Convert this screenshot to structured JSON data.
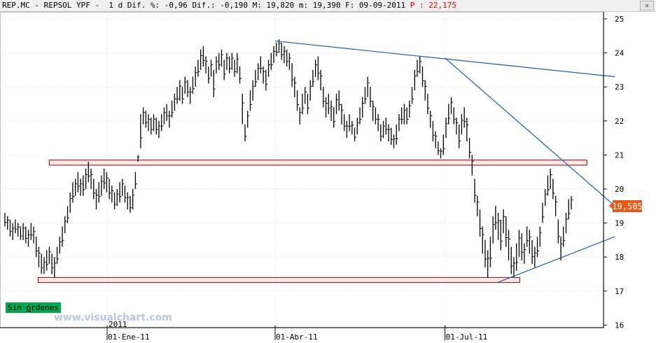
{
  "header": {
    "quote_text": "REP.MC - REPSOL YPF -  1 d Dif. %: -0,96 Dif.: -0,190 M: 19,820 m: 19,390 F: 09-09-2011 ",
    "p_text": "P : 22,175",
    "close_icon": "close-icon"
  },
  "status": {
    "label_prefix": "Sin ",
    "label_underlined": "ó",
    "label_suffix": "rdenes",
    "color": "#00a651"
  },
  "watermark": "www.visualchart.com",
  "last_price": "19,505",
  "colors": {
    "bar": "#000000",
    "trendline": "#1f5faa",
    "zone_border": "#8b0000",
    "zone_fill": "#ffe8e8",
    "price_flag": "#e85a1a",
    "grid": "#d9d9d9"
  },
  "chart_data": {
    "type": "ohlc",
    "title": "REP.MC - REPSOL YPF - 1 d",
    "y_ticks": [
      "25",
      "24",
      "23",
      "22",
      "21",
      "20",
      "19",
      "18",
      "17",
      "16"
    ],
    "ylim": [
      16,
      25.2
    ],
    "x_labels": [
      "01-Ene-11",
      "01-Abr-11",
      "01-Jul-11"
    ],
    "year_label": "2011",
    "grid": "horizontal-dotted",
    "last_price": 19.505,
    "series": [
      {
        "values": [
          [
            19.3,
            18.9
          ],
          [
            19.2,
            18.8
          ],
          [
            19.1,
            18.6
          ],
          [
            19.0,
            18.5
          ],
          [
            19.1,
            18.7
          ],
          [
            19.0,
            18.6
          ],
          [
            18.9,
            18.5
          ],
          [
            19.0,
            18.5
          ],
          [
            18.9,
            18.4
          ],
          [
            18.8,
            18.3
          ],
          [
            19.0,
            18.5
          ],
          [
            18.9,
            18.4
          ],
          [
            18.6,
            18.0
          ],
          [
            18.3,
            17.7
          ],
          [
            18.1,
            17.5
          ],
          [
            18.0,
            17.5
          ],
          [
            18.2,
            17.6
          ],
          [
            18.3,
            17.8
          ],
          [
            18.1,
            17.5
          ],
          [
            18.0,
            17.4
          ],
          [
            18.3,
            17.8
          ],
          [
            18.6,
            18.1
          ],
          [
            18.9,
            18.3
          ],
          [
            19.2,
            18.7
          ],
          [
            19.5,
            19.0
          ],
          [
            19.9,
            19.3
          ],
          [
            20.2,
            19.6
          ],
          [
            20.3,
            19.8
          ],
          [
            20.5,
            19.9
          ],
          [
            20.3,
            19.8
          ],
          [
            20.4,
            19.8
          ],
          [
            20.6,
            20.0
          ],
          [
            20.8,
            20.2
          ],
          [
            20.6,
            20.0
          ],
          [
            20.3,
            19.7
          ],
          [
            20.0,
            19.4
          ],
          [
            20.2,
            19.6
          ],
          [
            20.4,
            19.8
          ],
          [
            20.6,
            20.0
          ],
          [
            20.5,
            19.9
          ],
          [
            20.3,
            19.7
          ],
          [
            20.1,
            19.6
          ],
          [
            19.9,
            19.4
          ],
          [
            20.0,
            19.5
          ],
          [
            20.2,
            19.6
          ],
          [
            20.3,
            19.8
          ],
          [
            20.1,
            19.6
          ],
          [
            19.9,
            19.4
          ],
          [
            19.8,
            19.3
          ],
          [
            20.0,
            19.4
          ],
          [
            20.5,
            20.0
          ],
          [
            21.0,
            20.8
          ],
          [
            22.2,
            21.2
          ],
          [
            22.4,
            21.9
          ],
          [
            22.3,
            21.8
          ],
          [
            22.2,
            21.7
          ],
          [
            22.1,
            21.6
          ],
          [
            22.2,
            21.7
          ],
          [
            22.1,
            21.6
          ],
          [
            22.0,
            21.5
          ],
          [
            22.2,
            21.7
          ],
          [
            22.4,
            21.9
          ],
          [
            22.5,
            22.0
          ],
          [
            22.3,
            21.8
          ],
          [
            22.6,
            22.1
          ],
          [
            22.8,
            22.3
          ],
          [
            23.0,
            22.5
          ],
          [
            23.2,
            22.6
          ],
          [
            23.0,
            22.5
          ],
          [
            23.3,
            22.8
          ],
          [
            23.2,
            22.7
          ],
          [
            23.0,
            22.5
          ],
          [
            23.3,
            22.8
          ],
          [
            23.6,
            23.0
          ],
          [
            23.8,
            23.3
          ],
          [
            24.1,
            23.5
          ],
          [
            24.2,
            23.6
          ],
          [
            23.9,
            23.4
          ],
          [
            23.6,
            23.1
          ],
          [
            23.8,
            23.3
          ],
          [
            23.5,
            22.7
          ],
          [
            23.9,
            23.4
          ],
          [
            24.0,
            23.5
          ],
          [
            24.1,
            23.6
          ],
          [
            23.8,
            23.2
          ],
          [
            24.0,
            23.5
          ],
          [
            23.9,
            23.4
          ],
          [
            24.0,
            23.5
          ],
          [
            23.8,
            23.3
          ],
          [
            24.0,
            23.4
          ],
          [
            23.6,
            23.1
          ],
          [
            22.8,
            21.9
          ],
          [
            21.9,
            21.4
          ],
          [
            22.3,
            21.8
          ],
          [
            22.9,
            22.3
          ],
          [
            23.2,
            22.6
          ],
          [
            23.5,
            23.0
          ],
          [
            23.7,
            23.2
          ],
          [
            23.9,
            23.4
          ],
          [
            23.6,
            23.1
          ],
          [
            23.5,
            22.9
          ],
          [
            23.8,
            23.3
          ],
          [
            24.0,
            23.5
          ],
          [
            24.2,
            23.7
          ],
          [
            24.3,
            23.9
          ],
          [
            24.4,
            24.0
          ],
          [
            24.3,
            23.8
          ],
          [
            24.2,
            23.7
          ],
          [
            24.1,
            23.6
          ],
          [
            24.0,
            23.5
          ],
          [
            23.7,
            23.0
          ],
          [
            23.3,
            22.7
          ],
          [
            22.9,
            22.3
          ],
          [
            22.4,
            21.9
          ],
          [
            22.8,
            22.2
          ],
          [
            23.0,
            22.5
          ],
          [
            22.8,
            22.2
          ],
          [
            23.2,
            22.6
          ],
          [
            23.5,
            23.0
          ],
          [
            23.8,
            23.3
          ],
          [
            23.9,
            23.2
          ],
          [
            23.5,
            22.9
          ],
          [
            23.0,
            22.4
          ],
          [
            22.7,
            22.1
          ],
          [
            22.8,
            22.2
          ],
          [
            22.6,
            22.0
          ],
          [
            22.4,
            21.8
          ],
          [
            22.8,
            22.2
          ],
          [
            22.9,
            22.3
          ],
          [
            22.5,
            21.9
          ],
          [
            22.2,
            21.7
          ],
          [
            22.0,
            21.5
          ],
          [
            22.2,
            21.7
          ],
          [
            22.0,
            21.6
          ],
          [
            21.8,
            21.4
          ],
          [
            22.1,
            21.6
          ],
          [
            22.4,
            21.9
          ],
          [
            22.7,
            22.1
          ],
          [
            23.0,
            22.5
          ],
          [
            23.3,
            22.7
          ],
          [
            23.0,
            22.4
          ],
          [
            22.6,
            22.0
          ],
          [
            22.4,
            21.9
          ],
          [
            22.2,
            21.7
          ],
          [
            21.9,
            21.4
          ],
          [
            22.0,
            21.5
          ],
          [
            22.1,
            21.6
          ],
          [
            21.9,
            21.4
          ],
          [
            21.8,
            21.3
          ],
          [
            21.6,
            21.2
          ],
          [
            21.9,
            21.3
          ],
          [
            22.2,
            21.7
          ],
          [
            22.4,
            21.9
          ],
          [
            22.5,
            21.9
          ],
          [
            22.4,
            21.9
          ],
          [
            22.6,
            22.1
          ],
          [
            23.0,
            22.5
          ],
          [
            23.5,
            22.9
          ],
          [
            23.8,
            23.3
          ],
          [
            23.9,
            23.4
          ],
          [
            23.6,
            23.0
          ],
          [
            23.2,
            22.6
          ],
          [
            22.8,
            22.2
          ],
          [
            22.3,
            21.8
          ],
          [
            22.0,
            21.4
          ],
          [
            21.7,
            21.2
          ],
          [
            21.4,
            21.0
          ],
          [
            21.2,
            20.9
          ],
          [
            21.6,
            21.0
          ],
          [
            22.1,
            21.5
          ],
          [
            22.5,
            21.9
          ],
          [
            22.7,
            22.2
          ],
          [
            22.4,
            21.9
          ],
          [
            22.1,
            21.6
          ],
          [
            21.9,
            21.2
          ],
          [
            22.2,
            21.6
          ],
          [
            22.4,
            21.8
          ],
          [
            22.1,
            21.4
          ],
          [
            21.5,
            20.9
          ],
          [
            21.0,
            20.4
          ],
          [
            20.3,
            19.6
          ],
          [
            19.8,
            19.2
          ],
          [
            19.4,
            18.6
          ],
          [
            18.9,
            18.1
          ],
          [
            18.5,
            17.7
          ],
          [
            18.2,
            17.4
          ],
          [
            18.6,
            17.7
          ],
          [
            19.2,
            18.4
          ],
          [
            19.5,
            18.8
          ],
          [
            19.3,
            18.5
          ],
          [
            19.1,
            18.2
          ],
          [
            19.4,
            18.7
          ],
          [
            19.2,
            18.3
          ],
          [
            18.8,
            17.9
          ],
          [
            18.3,
            17.5
          ],
          [
            18.0,
            17.4
          ],
          [
            18.4,
            17.6
          ],
          [
            18.8,
            18.0
          ],
          [
            18.7,
            17.9
          ],
          [
            18.4,
            17.8
          ],
          [
            18.9,
            18.3
          ],
          [
            18.8,
            18.1
          ],
          [
            18.5,
            17.8
          ],
          [
            18.3,
            17.7
          ],
          [
            18.6,
            18.0
          ],
          [
            18.9,
            18.3
          ],
          [
            19.6,
            19.0
          ],
          [
            20.0,
            19.5
          ],
          [
            20.4,
            19.8
          ],
          [
            20.6,
            20.0
          ],
          [
            20.3,
            19.7
          ],
          [
            19.8,
            19.2
          ],
          [
            19.1,
            18.4
          ],
          [
            18.6,
            17.9
          ],
          [
            18.9,
            18.3
          ],
          [
            19.3,
            18.7
          ],
          [
            19.7,
            19.1
          ],
          [
            19.8,
            19.4
          ]
        ]
      }
    ],
    "trendlines": [
      {
        "from": [
          "2011-04-01",
          24.35
        ],
        "to": [
          "2011-09-30",
          23.3
        ]
      },
      {
        "from": [
          "2011-07-01",
          23.85
        ],
        "to": [
          "2011-09-30",
          19.5
        ]
      },
      {
        "from": [
          "2011-07-29",
          17.25
        ],
        "to": [
          "2011-09-30",
          18.6
        ]
      }
    ],
    "zones": [
      {
        "from": [
          "2010-12-01",
          20.85
        ],
        "to": [
          "2011-09-15",
          20.7
        ]
      },
      {
        "from": [
          "2010-11-25",
          17.4
        ],
        "to": [
          "2011-08-10",
          17.25
        ]
      }
    ]
  }
}
